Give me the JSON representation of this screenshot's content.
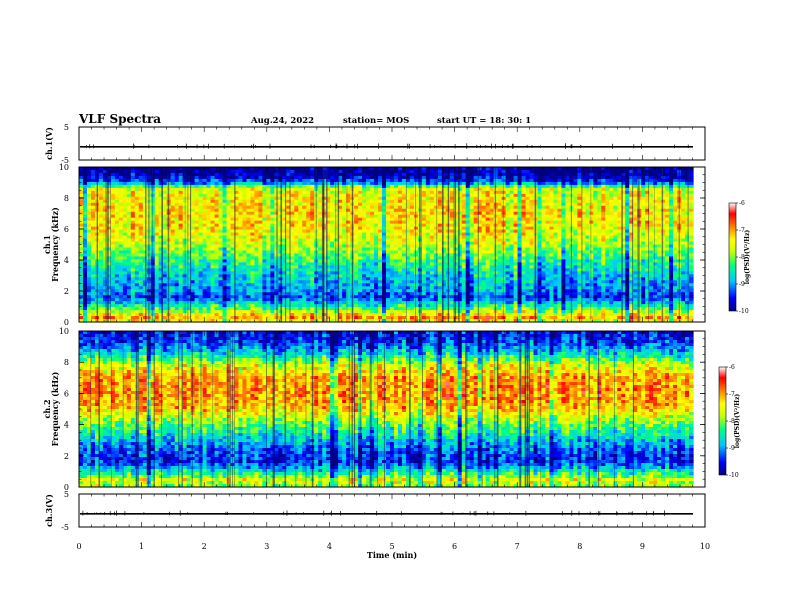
{
  "header": {
    "title": "VLF Spectra",
    "date": "Aug.24, 2022",
    "station": "station= MOS",
    "start": "start UT = 18: 30: 1"
  },
  "chart_data": [
    {
      "type": "line",
      "ylabel": "ch.1(V)",
      "ylim": [
        -5,
        5
      ],
      "yticks": [
        "5",
        "-5"
      ],
      "xlim": [
        0,
        10
      ],
      "baseline": -1
    },
    {
      "type": "heatmap",
      "ylabel_top": "ch.1",
      "ylabel": "Frequency (kHz)",
      "ylim": [
        0,
        10
      ],
      "yticks": [
        "0",
        "2",
        "4",
        "6",
        "8",
        "10"
      ],
      "xlim": [
        0,
        10
      ],
      "colorbar": {
        "label": "log(PSD)(V²/Hz)",
        "range": [
          -10,
          -6
        ],
        "ticks": [
          "-6",
          "-7",
          "-8",
          "-9",
          "-10"
        ],
        "colors": [
          "#000080",
          "#0000ff",
          "#00c8ff",
          "#00ff80",
          "#c8ff00",
          "#ffff00",
          "#ff8000",
          "#ff0000",
          "#ffffff"
        ]
      },
      "profile_log_psd": [
        {
          "f": 0.0,
          "v": -7.6
        },
        {
          "f": 0.3,
          "v": -7.0
        },
        {
          "f": 0.8,
          "v": -8.0
        },
        {
          "f": 1.6,
          "v": -9.3
        },
        {
          "f": 2.0,
          "v": -9.0
        },
        {
          "f": 2.8,
          "v": -8.8
        },
        {
          "f": 4.0,
          "v": -8.3
        },
        {
          "f": 5.0,
          "v": -7.7
        },
        {
          "f": 6.0,
          "v": -7.4
        },
        {
          "f": 7.0,
          "v": -7.3
        },
        {
          "f": 8.0,
          "v": -7.4
        },
        {
          "f": 8.6,
          "v": -7.6
        },
        {
          "f": 9.0,
          "v": -9.2
        },
        {
          "f": 9.4,
          "v": -9.8
        },
        {
          "f": 10.0,
          "v": -10.0
        }
      ]
    },
    {
      "type": "heatmap",
      "ylabel_top": "ch.2",
      "ylabel": "Frequency (kHz)",
      "ylim": [
        0,
        10
      ],
      "yticks": [
        "0",
        "2",
        "4",
        "6",
        "8",
        "10"
      ],
      "xlim": [
        0,
        10
      ],
      "colorbar": {
        "label": "log(PSD)(V²/Hz)",
        "range": [
          -10,
          -6
        ],
        "ticks": [
          "-6",
          "-7",
          "-8",
          "-9",
          "-10"
        ],
        "colors": [
          "#000080",
          "#0000ff",
          "#00c8ff",
          "#00ff80",
          "#c8ff00",
          "#ffff00",
          "#ff8000",
          "#ff0000",
          "#ffffff"
        ]
      },
      "profile_log_psd": [
        {
          "f": 0.0,
          "v": -8.0
        },
        {
          "f": 0.4,
          "v": -7.5
        },
        {
          "f": 0.9,
          "v": -8.4
        },
        {
          "f": 1.6,
          "v": -9.4
        },
        {
          "f": 2.2,
          "v": -9.3
        },
        {
          "f": 3.0,
          "v": -8.8
        },
        {
          "f": 4.0,
          "v": -8.1
        },
        {
          "f": 5.0,
          "v": -7.2
        },
        {
          "f": 6.0,
          "v": -6.9
        },
        {
          "f": 7.0,
          "v": -7.0
        },
        {
          "f": 7.8,
          "v": -7.6
        },
        {
          "f": 8.5,
          "v": -8.6
        },
        {
          "f": 9.2,
          "v": -9.3
        },
        {
          "f": 10.0,
          "v": -9.6
        }
      ]
    },
    {
      "type": "line",
      "ylabel": "ch.3(V)",
      "ylim": [
        -5,
        5
      ],
      "yticks": [
        "5",
        "-5"
      ],
      "xlim": [
        0,
        10
      ],
      "baseline": -1,
      "xlabel": "Time (min)",
      "xticks": [
        "0",
        "1",
        "2",
        "3",
        "4",
        "5",
        "6",
        "7",
        "8",
        "9",
        "10"
      ]
    }
  ]
}
